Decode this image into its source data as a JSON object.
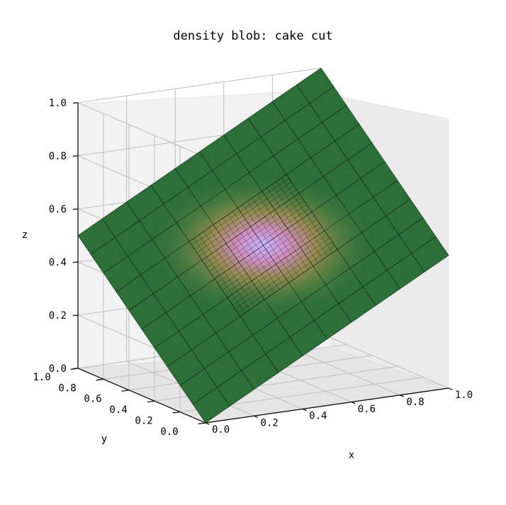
{
  "chart_data": {
    "type": "surface3d",
    "title": "density blob: cake cut",
    "xlabel": "x",
    "ylabel": "y",
    "zlabel": "z",
    "xlim": [
      0,
      1
    ],
    "ylim": [
      0,
      1
    ],
    "zlim": [
      0,
      1
    ],
    "x_ticks": [
      "0.0",
      "0.2",
      "0.4",
      "0.6",
      "0.8",
      "1.0"
    ],
    "y_ticks": [
      "0.0",
      "0.2",
      "0.4",
      "0.6",
      "0.8",
      "1.0"
    ],
    "z_ticks": [
      "0.0",
      "0.2",
      "0.4",
      "0.6",
      "0.8",
      "1.0"
    ],
    "grid": true,
    "surface": {
      "plane": "tilted planar cut through a density blob",
      "corners": [
        {
          "x": 0,
          "y": 0,
          "z": 0
        },
        {
          "x": 1,
          "y": 0,
          "z": 0.5
        },
        {
          "x": 1,
          "y": 1,
          "z": 1
        },
        {
          "x": 0,
          "y": 1,
          "z": 0.5
        }
      ],
      "blob_center": {
        "x": 0.5,
        "y": 0.5,
        "z": 0.5
      },
      "colormap_low": "#2d6e3a",
      "colormap_mid": "#a8914b",
      "colormap_high": "#c6a7ff"
    }
  }
}
